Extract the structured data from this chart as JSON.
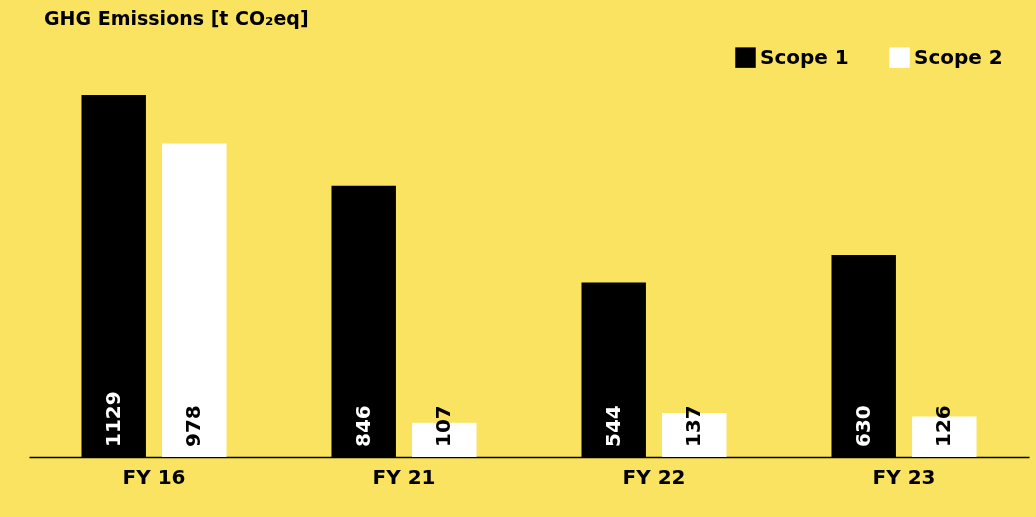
{
  "chart_data": {
    "type": "bar",
    "title": "GHG Emissions [t CO₂eq]",
    "categories": [
      "FY 16",
      "FY 21",
      "FY 22",
      "FY 23"
    ],
    "series": [
      {
        "name": "Scope 1",
        "color": "#000000",
        "values": [
          1129,
          846,
          544,
          630
        ]
      },
      {
        "name": "Scope 2",
        "color": "#ffffff",
        "values": [
          978,
          107,
          137,
          126
        ]
      }
    ],
    "data_labels": true,
    "grid": false,
    "legend": "top right"
  }
}
